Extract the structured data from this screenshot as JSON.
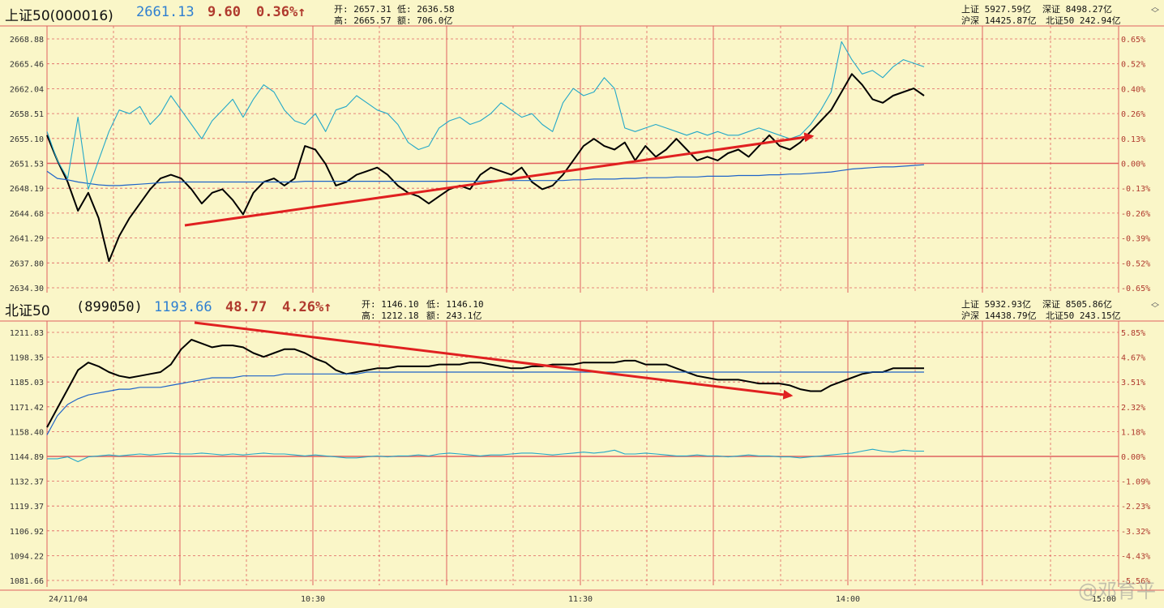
{
  "top": {
    "name": "上证50(000016)",
    "price": "2661.13",
    "change": "9.60",
    "pct": "0.36%↑",
    "open_label": "开: 2657.31",
    "low_label": "低: 2636.58",
    "high_label": "高: 2665.57",
    "amount_label": "额: 706.0亿",
    "mk1": "上证 5927.59亿",
    "mk2": "深证 8498.27亿",
    "mk3": "沪深 14425.87亿",
    "mk4": "北证50 242.94亿"
  },
  "bottom": {
    "name": "北证50",
    "code": "(899050)",
    "price": "1193.66",
    "change": "48.77",
    "pct": "4.26%↑",
    "open_label": "开: 1146.10",
    "low_label": "低: 1146.10",
    "high_label": "高: 1212.18",
    "amount_label": "额: 243.1亿",
    "mk1": "上证 5932.93亿",
    "mk2": "深证 8505.86亿",
    "mk3": "沪深 14438.79亿",
    "mk4": "北证50 243.15亿"
  },
  "colors": {
    "price_line": "#000000",
    "avg_line": "#1E64C8",
    "volume_line": "#23A8C8",
    "grid": "#E06060",
    "arrow": "#E02020"
  },
  "icons": {
    "toggle": "double-chevron-icon"
  },
  "watermark": "@邓育平",
  "chart_data": [
    {
      "type": "line",
      "x_tick_labels": [
        "24/11/04",
        "10:30",
        "11:30",
        "14:00",
        "15:00"
      ],
      "y_left_ticks": [
        "2668.88",
        "2665.46",
        "2662.04",
        "2658.51",
        "2655.10",
        "2651.53",
        "2648.19",
        "2644.68",
        "2641.29",
        "2637.80",
        "2634.30"
      ],
      "y_right_ticks": [
        "0.65%",
        "0.52%",
        "0.40%",
        "0.26%",
        "0.13%",
        "0.00%",
        "-0.13%",
        "-0.26%",
        "-0.39%",
        "-0.52%",
        "-0.65%"
      ],
      "ylim": [
        2634.3,
        2668.88
      ],
      "baseline": 2651.53,
      "series": [
        {
          "values": [
            2655.5,
            2652.0,
            2649.0,
            2645.0,
            2647.5,
            2644.0,
            2638.0,
            2641.5,
            2644.0,
            2646.0,
            2648.0,
            2649.5,
            2650.0,
            2649.5,
            2648.0,
            2646.0,
            2647.5,
            2648.0,
            2646.5,
            2644.5,
            2647.5,
            2649.0,
            2649.5,
            2648.5,
            2649.5,
            2654.0,
            2653.5,
            2651.5,
            2648.5,
            2649.0,
            2650.0,
            2650.5,
            2651.0,
            2650.0,
            2648.5,
            2647.5,
            2647.0,
            2646.0,
            2647.0,
            2648.0,
            2648.5,
            2648.0,
            2650.0,
            2651.0,
            2650.5,
            2650.0,
            2651.0,
            2649.0,
            2648.0,
            2648.5,
            2650.0,
            2652.0,
            2654.0,
            2655.0,
            2654.0,
            2653.5,
            2654.5,
            2652.0,
            2654.0,
            2652.5,
            2653.5,
            2655.0,
            2653.5,
            2652.0,
            2652.5,
            2652.0,
            2653.0,
            2653.5,
            2652.5,
            2654.0,
            2655.5,
            2654.0,
            2653.5,
            2654.5,
            2656.0,
            2657.5,
            2659.0,
            2661.5,
            2664.0,
            2662.5,
            2660.5,
            2660.0,
            2661.0,
            2661.5,
            2662.0,
            2661.0
          ]
        },
        {
          "values": [
            2650.5,
            2649.5,
            2649.3,
            2649.0,
            2648.8,
            2648.6,
            2648.5,
            2648.5,
            2648.6,
            2648.7,
            2648.8,
            2648.9,
            2649.0,
            2649.0,
            2649.0,
            2649.0,
            2649.0,
            2649.0,
            2649.0,
            2649.0,
            2649.0,
            2649.0,
            2649.0,
            2649.0,
            2649.0,
            2649.1,
            2649.1,
            2649.1,
            2649.1,
            2649.1,
            2649.1,
            2649.1,
            2649.1,
            2649.1,
            2649.1,
            2649.1,
            2649.1,
            2649.1,
            2649.1,
            2649.1,
            2649.1,
            2649.1,
            2649.1,
            2649.2,
            2649.2,
            2649.2,
            2649.2,
            2649.2,
            2649.2,
            2649.2,
            2649.2,
            2649.3,
            2649.3,
            2649.4,
            2649.4,
            2649.4,
            2649.5,
            2649.5,
            2649.6,
            2649.6,
            2649.6,
            2649.7,
            2649.7,
            2649.7,
            2649.8,
            2649.8,
            2649.8,
            2649.9,
            2649.9,
            2649.9,
            2650.0,
            2650.0,
            2650.1,
            2650.1,
            2650.2,
            2650.3,
            2650.4,
            2650.6,
            2650.8,
            2650.9,
            2651.0,
            2651.1,
            2651.1,
            2651.2,
            2651.3,
            2651.4
          ]
        },
        {
          "values": [
            2656.0,
            2652.0,
            2649.5,
            2658.0,
            2648.0,
            2652.0,
            2656.0,
            2659.0,
            2658.5,
            2659.5,
            2657.0,
            2658.5,
            2661.0,
            2659.0,
            2657.0,
            2655.0,
            2657.5,
            2659.0,
            2660.5,
            2658.0,
            2660.5,
            2662.5,
            2661.5,
            2659.0,
            2657.5,
            2657.0,
            2658.5,
            2656.0,
            2659.0,
            2659.5,
            2661.0,
            2660.0,
            2659.0,
            2658.5,
            2657.0,
            2654.5,
            2653.5,
            2654.0,
            2656.5,
            2657.5,
            2658.0,
            2657.0,
            2657.5,
            2658.5,
            2660.0,
            2659.0,
            2658.0,
            2658.5,
            2657.0,
            2656.0,
            2660.0,
            2662.0,
            2661.0,
            2661.5,
            2663.5,
            2662.0,
            2656.5,
            2656.0,
            2656.5,
            2657.0,
            2656.5,
            2656.0,
            2655.5,
            2656.0,
            2655.5,
            2656.0,
            2655.5,
            2655.5,
            2656.0,
            2656.5,
            2656.0,
            2655.5,
            2655.0,
            2655.5,
            2657.0,
            2659.0,
            2661.5,
            2668.5,
            2666.0,
            2664.0,
            2664.5,
            2663.5,
            2665.0,
            2666.0,
            2665.5,
            2665.0
          ]
        }
      ]
    },
    {
      "type": "line",
      "x_tick_labels": [
        "24/11/04",
        "10:30",
        "11:30",
        "14:00",
        "15:00"
      ],
      "y_left_ticks": [
        "1211.83",
        "1198.35",
        "1185.03",
        "1171.42",
        "1158.40",
        "1144.89",
        "1132.37",
        "1119.37",
        "1106.92",
        "1094.22",
        "1081.66"
      ],
      "y_right_ticks": [
        "5.85%",
        "4.67%",
        "3.51%",
        "2.32%",
        "1.18%",
        "0.00%",
        "-1.09%",
        "-2.23%",
        "-3.32%",
        "-4.43%",
        "-5.56%"
      ],
      "ylim": [
        1081.66,
        1211.83
      ],
      "baseline": 1144.89,
      "series": [
        {
          "values": [
            1162,
            1172,
            1182,
            1192,
            1196,
            1194,
            1191,
            1189,
            1188,
            1189,
            1190,
            1191,
            1195,
            1203,
            1208,
            1206,
            1204,
            1205,
            1205,
            1204,
            1201,
            1199,
            1201,
            1203,
            1203,
            1201,
            1198,
            1196,
            1192,
            1190,
            1191,
            1192,
            1193,
            1193,
            1194,
            1194,
            1194,
            1194,
            1195,
            1195,
            1195,
            1196,
            1196,
            1195,
            1194,
            1193,
            1193,
            1194,
            1194,
            1195,
            1195,
            1195,
            1196,
            1196,
            1196,
            1196,
            1197,
            1197,
            1195,
            1195,
            1195,
            1193,
            1191,
            1189,
            1188,
            1187,
            1187,
            1187,
            1186,
            1185,
            1185,
            1185,
            1184,
            1182,
            1181,
            1181,
            1184,
            1186,
            1188,
            1190,
            1191,
            1191,
            1193,
            1193,
            1193,
            1193
          ]
        },
        {
          "values": [
            1158,
            1168,
            1174,
            1177,
            1179,
            1180,
            1181,
            1182,
            1182,
            1183,
            1183,
            1183,
            1184,
            1185,
            1186,
            1187,
            1188,
            1188,
            1188,
            1189,
            1189,
            1189,
            1189,
            1190,
            1190,
            1190,
            1190,
            1190,
            1190,
            1190,
            1190,
            1191,
            1191,
            1191,
            1191,
            1191,
            1191,
            1191,
            1191,
            1191,
            1191,
            1191,
            1191,
            1191,
            1191,
            1191,
            1191,
            1191,
            1191,
            1191,
            1191,
            1191,
            1191,
            1191,
            1191,
            1191,
            1191,
            1191,
            1191,
            1191,
            1191,
            1191,
            1191,
            1191,
            1191,
            1191,
            1191,
            1191,
            1191,
            1191,
            1191,
            1191,
            1191,
            1191,
            1191,
            1191,
            1191,
            1191,
            1191,
            1191,
            1191,
            1191,
            1191,
            1191,
            1191,
            1191
          ]
        },
        {
          "values": [
            1145.5,
            1145.5,
            1146.5,
            1144,
            1146.5,
            1147,
            1147.5,
            1147,
            1147.5,
            1148,
            1147.5,
            1148,
            1148.5,
            1148,
            1148,
            1148.5,
            1148,
            1147.5,
            1148,
            1147.5,
            1148,
            1148.5,
            1148,
            1148,
            1147.5,
            1147,
            1147.5,
            1147,
            1146.5,
            1146,
            1146,
            1146.5,
            1147,
            1146.5,
            1147,
            1147,
            1147.5,
            1147,
            1148,
            1148.5,
            1148,
            1147.5,
            1147,
            1147.5,
            1147.5,
            1148,
            1148.5,
            1148.5,
            1148,
            1147.5,
            1148,
            1148.5,
            1149,
            1148.5,
            1149,
            1150,
            1148,
            1148,
            1148.5,
            1148,
            1147.5,
            1147,
            1147,
            1147.5,
            1147,
            1147,
            1146.5,
            1147,
            1147.5,
            1147,
            1147,
            1146.5,
            1146.5,
            1146,
            1146.5,
            1147,
            1147.5,
            1148,
            1148.5,
            1149.5,
            1150.5,
            1149.5,
            1149,
            1150,
            1149.5,
            1149.5
          ]
        }
      ]
    }
  ]
}
